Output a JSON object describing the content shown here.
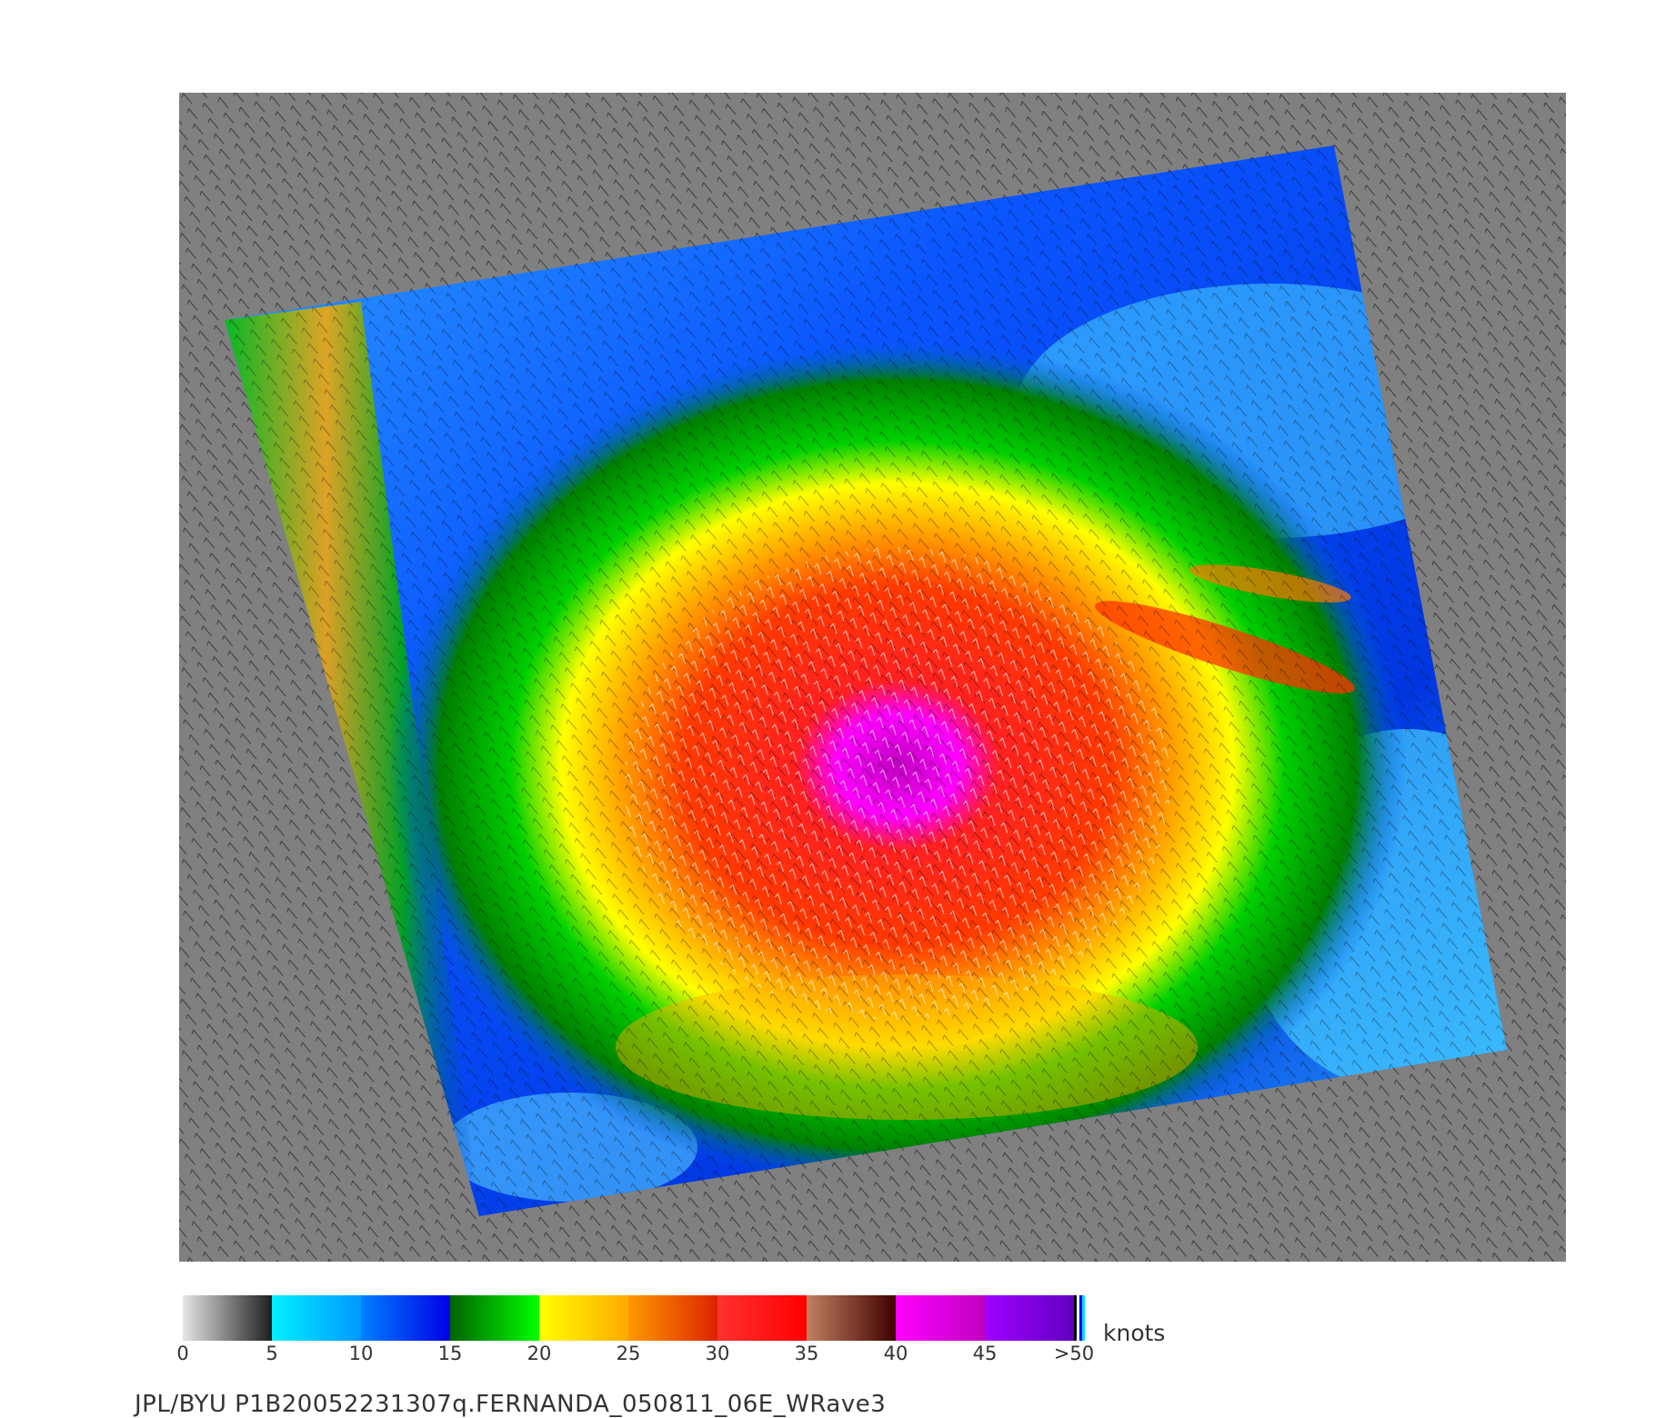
{
  "colorbar": {
    "unit": "knots",
    "ticks": [
      "0",
      "5",
      "10",
      "15",
      "20",
      "25",
      "30",
      "35",
      "40",
      "45",
      ">50"
    ],
    "segments": [
      {
        "from": "#e6e6e6",
        "to": "#1e1e1e"
      },
      {
        "from": "#00f0ff",
        "to": "#0099ff"
      },
      {
        "from": "#0080ff",
        "to": "#0000e6"
      },
      {
        "from": "#006400",
        "to": "#00ff00"
      },
      {
        "from": "#ffff00",
        "to": "#ffaa00"
      },
      {
        "from": "#ff9900",
        "to": "#dd2200"
      },
      {
        "from": "#ff3030",
        "to": "#ff0000"
      },
      {
        "from": "#c08060",
        "to": "#400000"
      },
      {
        "from": "#ff00ff",
        "to": "#c000c0"
      },
      {
        "from": "#a000ff",
        "to": "#6000c0"
      }
    ],
    "end_marks": [
      "#000000",
      "#ffffff",
      "#0000ff",
      "#00e0ff"
    ]
  },
  "map": {
    "background_color": "#808080",
    "storm_center_speed_knots": 45,
    "wind_barb_color": "#000000",
    "high_wind_barb_color": "#ffffff"
  },
  "footer": {
    "text": "JPL/BYU  P1B20052231307q.FERNANDA_050811_06E_WRave3"
  }
}
